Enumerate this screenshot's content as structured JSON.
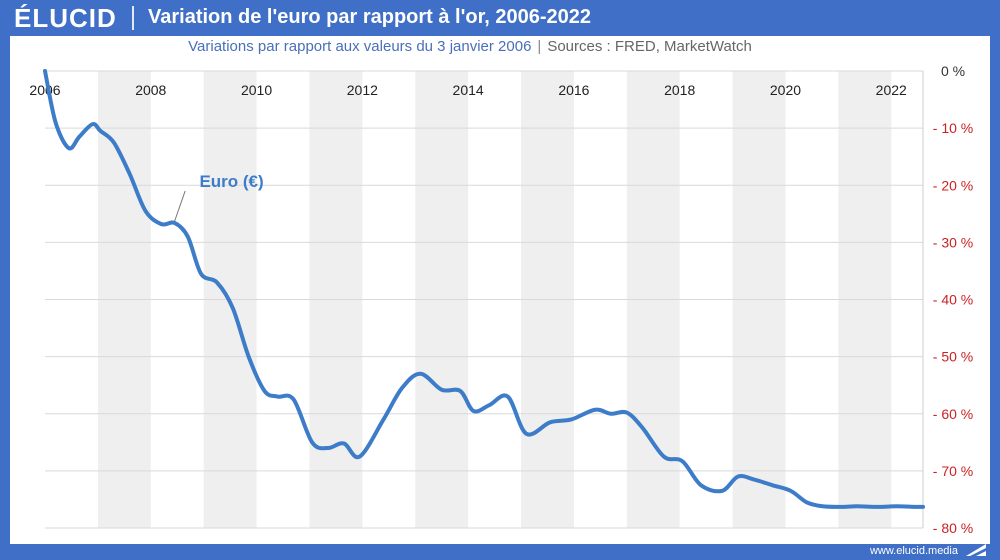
{
  "header": {
    "logo": "ÉLUCID",
    "title": "Variation de l'euro par rapport à l'or, 2006-2022"
  },
  "subtitle": {
    "text": "Variations par rapport aux valeurs du 3 janvier 2006",
    "separator": "|",
    "sources": "Sources : FRED, MarketWatch"
  },
  "footer": {
    "site": "www.elucid.media"
  },
  "colors": {
    "brand": "#3f6fc6",
    "line": "#3d7cc9",
    "negative_tick": "#cc2222",
    "band": "#efefef"
  },
  "chart_data": {
    "type": "line",
    "title": "Variation de l'euro par rapport à l'or, 2006-2022",
    "xlabel": "",
    "ylabel": "",
    "xlim": [
      2006,
      2022.6
    ],
    "ylim": [
      -80,
      0
    ],
    "x_ticks": [
      2006,
      2008,
      2010,
      2012,
      2014,
      2016,
      2018,
      2020,
      2022
    ],
    "x_tick_labels": [
      "2006",
      "2008",
      "2010",
      "2012",
      "2014",
      "2016",
      "2018",
      "2020",
      "2022"
    ],
    "y_ticks": [
      0,
      -10,
      -20,
      -30,
      -40,
      -50,
      -60,
      -70,
      -80
    ],
    "y_tick_labels": [
      "0 %",
      "- 10 %",
      "- 20 %",
      "- 30 %",
      "- 40 %",
      "- 50 %",
      "- 60 %",
      "- 70 %",
      "- 80 %"
    ],
    "series": [
      {
        "name": "Euro (€)",
        "label_text": "Euro (€)",
        "x": [
          2006.0,
          2006.2,
          2006.45,
          2006.65,
          2006.9,
          2007.05,
          2007.3,
          2007.6,
          2007.9,
          2008.2,
          2008.45,
          2008.7,
          2008.95,
          2009.25,
          2009.55,
          2009.85,
          2010.15,
          2010.4,
          2010.7,
          2011.05,
          2011.35,
          2011.65,
          2011.95,
          2012.4,
          2012.75,
          2013.1,
          2013.5,
          2013.85,
          2014.1,
          2014.4,
          2014.75,
          2015.1,
          2015.55,
          2015.95,
          2016.4,
          2016.7,
          2017.0,
          2017.3,
          2017.7,
          2018.05,
          2018.4,
          2018.8,
          2019.1,
          2019.4,
          2019.75,
          2020.1,
          2020.4,
          2020.7,
          2021.05,
          2021.35,
          2021.75,
          2022.1,
          2022.45,
          2022.6
        ],
        "values": [
          0,
          -9,
          -13.5,
          -11.5,
          -9.3,
          -10.5,
          -12.5,
          -18,
          -24.5,
          -26.8,
          -26.6,
          -29,
          -35.5,
          -37,
          -41.5,
          -50,
          -56,
          -57,
          -57.5,
          -65,
          -66,
          -65.2,
          -67.5,
          -61,
          -55.5,
          -53,
          -55.8,
          -56,
          -59.5,
          -58.5,
          -57,
          -63.5,
          -61.5,
          -61,
          -59.3,
          -60,
          -59.8,
          -62.5,
          -67.5,
          -68.3,
          -72.5,
          -73.5,
          -71,
          -71.5,
          -72.5,
          -73.5,
          -75.5,
          -76.2,
          -76.3,
          -76.2,
          -76.3,
          -76.2,
          -76.3,
          -76.3
        ]
      }
    ]
  }
}
